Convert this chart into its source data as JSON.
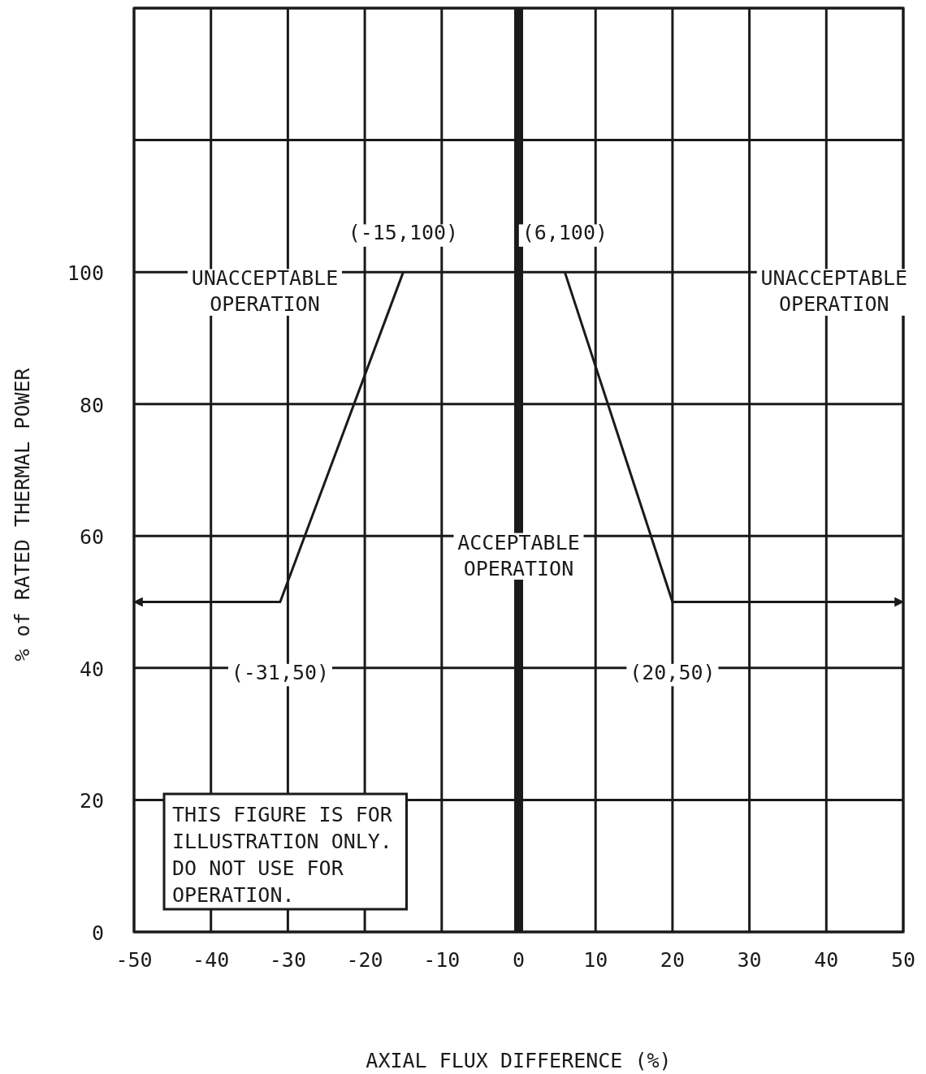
{
  "chart_data": {
    "type": "line",
    "xlabel": "AXIAL FLUX DIFFERENCE (%)",
    "ylabel": "% of RATED THERMAL POWER",
    "xlim": [
      -50,
      50
    ],
    "xticks": [
      -50,
      -40,
      -30,
      -20,
      -10,
      0,
      10,
      20,
      30,
      40,
      50
    ],
    "ylim": [
      0,
      140
    ],
    "yticks": [
      0,
      20,
      40,
      60,
      80,
      100,
      {
        "value": 120,
        "label": null
      },
      {
        "value": 140,
        "label": null
      }
    ],
    "grid": true,
    "marker": "none",
    "line_style": "solid",
    "series": [
      {
        "color": "#1a1a1a",
        "x": [
          -50,
          -31,
          -15
        ],
        "values": [
          50,
          50,
          100
        ]
      },
      {
        "color": "#1a1a1a",
        "x": [
          6,
          20,
          50
        ],
        "values": [
          100,
          50,
          50
        ]
      }
    ],
    "ref_lines": [
      {
        "axis": "x",
        "value": 0,
        "color": "#1a1a1a"
      }
    ],
    "annotations": [
      {
        "text": "(-15,100)",
        "x": -15,
        "y": 100
      },
      {
        "text": "(6,100)",
        "x": 6,
        "y": 100
      },
      {
        "text": "(-31,50)",
        "x": -31,
        "y": 50
      },
      {
        "text": "(20,50)",
        "x": 20,
        "y": 50
      },
      "UNACCEPTABLE OPERATION",
      "UNACCEPTABLE OPERATION",
      "ACCEPTABLE OPERATION",
      "THIS FIGURE IS FOR ILLUSTRATION ONLY. DO NOT USE FOR OPERATION."
    ]
  }
}
